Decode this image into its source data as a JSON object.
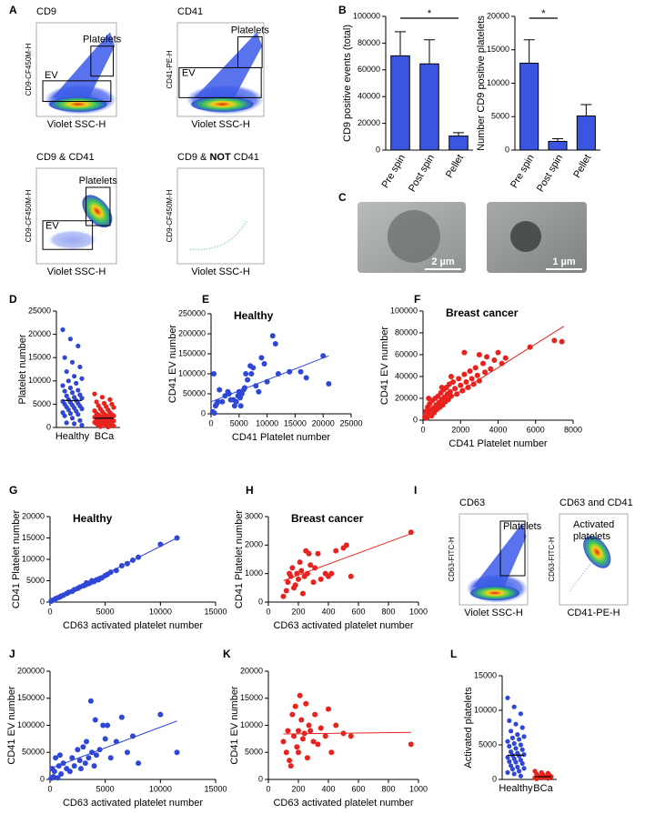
{
  "panel_labels": [
    "A",
    "B",
    "C",
    "D",
    "E",
    "F",
    "G",
    "H",
    "I",
    "J",
    "K",
    "L"
  ],
  "flow_cytometry": {
    "panel_A": [
      {
        "title": "CD9",
        "y_label": "CD9-CF450M-H",
        "x_label": "Violet SSC-H",
        "gates": [
          "EV",
          "Platelets"
        ]
      },
      {
        "title": "CD41",
        "y_label": "CD41-PE-H",
        "x_label": "Violet SSC-H",
        "gates": [
          "EV",
          "Platelets"
        ]
      },
      {
        "title": "CD9 & CD41",
        "y_label": "CD9-CF450M-H",
        "x_label": "Violet SSC-H",
        "gates": [
          "EV",
          "Platelets"
        ]
      },
      {
        "title_parts": [
          "CD9 & ",
          "NOT",
          " CD41"
        ],
        "y_label": "CD9-CF450M-H",
        "x_label": "Violet SSC-H"
      }
    ],
    "panel_I": [
      {
        "title": "CD63",
        "y_label": "CD63-FITC-H",
        "x_label": "Violet SSC-H",
        "gates": [
          "Platelets"
        ]
      },
      {
        "title": "CD63 and CD41",
        "y_label": "CD63-FITC-H",
        "x_label": "CD41-PE-H",
        "annotation": [
          "Activated",
          "platelets"
        ]
      }
    ]
  },
  "micrographs": {
    "scale_bars": [
      "2 µm",
      "1 µm"
    ]
  },
  "chart_data": [
    {
      "type": "bar",
      "ylabel": "CD9 positive events (total)",
      "categories": [
        "Pre spin",
        "Post spin",
        "Pellet"
      ],
      "values": [
        70500,
        64500,
        10500
      ],
      "errors": [
        18000,
        18000,
        2500
      ],
      "color": "#3a55e0",
      "ylim": [
        0,
        100000
      ],
      "yticks": [
        0,
        20000,
        40000,
        60000,
        80000,
        100000
      ],
      "significance": {
        "label": "*",
        "categories": [
          "Pre spin",
          "Pellet"
        ]
      }
    },
    {
      "type": "bar",
      "ylabel": "Number CD9 positive platelets",
      "categories": [
        "Pre spin",
        "Post spin",
        "Pellet"
      ],
      "values": [
        13000,
        1300,
        5100
      ],
      "errors": [
        3500,
        400,
        1700
      ],
      "color": "#3a55e0",
      "ylim": [
        0,
        20000
      ],
      "yticks": [
        0,
        5000,
        10000,
        15000,
        20000
      ],
      "significance": {
        "label": "*",
        "categories": [
          "Pre spin",
          "Post spin"
        ]
      }
    },
    {
      "type": "strip",
      "ylabel": "Platelet number",
      "categories": [
        "Healthy",
        "BCa"
      ],
      "series": [
        {
          "color": "#2f47d6",
          "values": [
            21000,
            19000,
            17500,
            15000,
            14000,
            13000,
            12000,
            11000,
            10500,
            10000,
            9500,
            9000,
            8500,
            8000,
            7800,
            7500,
            7000,
            6800,
            6500,
            6300,
            6000,
            5800,
            5600,
            5400,
            5200,
            5000,
            4800,
            4600,
            4400,
            4200,
            4000,
            3800,
            3500,
            3200,
            3000,
            2800,
            2500,
            2000,
            1500,
            1000,
            800,
            500
          ]
        },
        {
          "color": "#e8231e",
          "values": [
            7200,
            6500,
            6000,
            5500,
            5200,
            5000,
            4700,
            4500,
            4300,
            4000,
            3800,
            3600,
            3400,
            3200,
            3000,
            2900,
            2800,
            2700,
            2600,
            2500,
            2400,
            2300,
            2200,
            2100,
            2000,
            1900,
            1800,
            1700,
            1600,
            1500,
            1400,
            1300,
            1200,
            1100,
            1000,
            900,
            800,
            700,
            600,
            500,
            400,
            300,
            200,
            100
          ]
        }
      ],
      "means": [
        5800,
        2000
      ],
      "ylim": [
        0,
        25000
      ],
      "yticks": [
        0,
        5000,
        10000,
        15000,
        20000,
        25000
      ]
    },
    {
      "type": "scatter",
      "title": "Healthy",
      "xlabel": "CD41 Platelet number",
      "ylabel": "CD41 EV number",
      "color": "#2f47d6",
      "x": [
        300,
        500,
        800,
        1000,
        1500,
        2000,
        2500,
        3000,
        3200,
        3500,
        4000,
        4200,
        4500,
        4800,
        5000,
        5200,
        5500,
        5800,
        6000,
        6200,
        6500,
        7000,
        7200,
        7500,
        8000,
        8500,
        9000,
        9500,
        10000,
        11000,
        11500,
        12000,
        14000,
        16000,
        17000,
        20000,
        21000,
        600,
        1200,
        5300
      ],
      "values": [
        5000,
        100000,
        20000,
        25000,
        60000,
        30000,
        45000,
        55000,
        50000,
        35000,
        35000,
        20000,
        30000,
        45000,
        55000,
        40000,
        50000,
        60000,
        65000,
        100000,
        85000,
        120000,
        100000,
        115000,
        70000,
        55000,
        140000,
        125000,
        80000,
        195000,
        175000,
        100000,
        105000,
        105000,
        90000,
        145000,
        75000,
        2000,
        30000,
        20000
      ],
      "fit_x": [
        0,
        21000
      ],
      "fit_y": [
        30000,
        145000
      ],
      "xlim": [
        0,
        25000
      ],
      "xticks": [
        0,
        5000,
        10000,
        15000,
        20000,
        25000
      ],
      "ylim": [
        0,
        250000
      ],
      "yticks": [
        0,
        50000,
        100000,
        150000,
        200000,
        250000
      ]
    },
    {
      "type": "scatter",
      "title": "Breast cancer",
      "xlabel": "CD41 Platelet number",
      "ylabel": "CD41 EV number",
      "color": "#e8231e",
      "x": [
        100,
        150,
        200,
        250,
        300,
        350,
        400,
        450,
        500,
        550,
        600,
        650,
        700,
        750,
        800,
        850,
        900,
        950,
        1000,
        1050,
        1100,
        1150,
        1200,
        1250,
        1300,
        1350,
        1400,
        1450,
        1500,
        1600,
        1700,
        1800,
        1900,
        2000,
        2100,
        2200,
        2300,
        2400,
        2500,
        2600,
        2700,
        2800,
        2900,
        3000,
        3200,
        3300,
        3400,
        3600,
        3800,
        4000,
        4200,
        4400,
        2200,
        1500,
        1000,
        3000,
        5700,
        7000,
        7400,
        300
      ],
      "values": [
        3000,
        8000,
        2000,
        12000,
        6000,
        15000,
        9000,
        4000,
        18000,
        11000,
        7000,
        20000,
        14000,
        10000,
        22000,
        16000,
        12000,
        25000,
        19000,
        14000,
        28000,
        21000,
        17000,
        30000,
        24000,
        19000,
        33000,
        26000,
        22000,
        35000,
        29000,
        24000,
        38000,
        32000,
        27000,
        42000,
        35000,
        30000,
        45000,
        38000,
        33000,
        48000,
        41000,
        36000,
        52000,
        44000,
        58000,
        47000,
        55000,
        62000,
        52000,
        57000,
        62000,
        40000,
        30000,
        60000,
        67000,
        73000,
        72000,
        20000
      ],
      "fit_x": [
        0,
        7500
      ],
      "fit_y": [
        5000,
        86000
      ],
      "xlim": [
        0,
        8000
      ],
      "xticks": [
        0,
        2000,
        4000,
        6000,
        8000
      ],
      "ylim": [
        0,
        100000
      ],
      "yticks": [
        0,
        20000,
        40000,
        60000,
        80000,
        100000
      ]
    },
    {
      "type": "scatter",
      "title": "Healthy",
      "xlabel": "CD63 activated platelet number",
      "ylabel": "CD41 Platelet number",
      "color": "#2f47d6",
      "x": [
        100,
        200,
        400,
        500,
        700,
        900,
        1000,
        1200,
        1500,
        1700,
        2000,
        2200,
        2500,
        2700,
        3000,
        3200,
        3500,
        3700,
        4000,
        4200,
        4500,
        4700,
        5000,
        5200,
        5500,
        6000,
        6500,
        7000,
        7500,
        8000,
        10000,
        11500,
        3300,
        3800,
        4400
      ],
      "values": [
        200,
        400,
        500,
        800,
        1000,
        1200,
        1400,
        1600,
        2000,
        2300,
        2500,
        2900,
        3200,
        3500,
        3800,
        4000,
        4300,
        4600,
        4800,
        5200,
        5500,
        5700,
        6200,
        6500,
        7000,
        7400,
        8500,
        9000,
        9800,
        10500,
        13500,
        15000,
        4500,
        5000,
        5200
      ],
      "fit_x": [
        0,
        11500
      ],
      "fit_y": [
        0,
        15000
      ],
      "xlim": [
        0,
        15000
      ],
      "xticks": [
        0,
        5000,
        10000,
        15000
      ],
      "ylim": [
        0,
        20000
      ],
      "yticks": [
        0,
        5000,
        10000,
        15000,
        20000
      ]
    },
    {
      "type": "scatter",
      "title": "Breast cancer",
      "xlabel": "CD63 activated platelet number",
      "ylabel": "CD41 Platelet number",
      "color": "#e8231e",
      "x": [
        100,
        120,
        130,
        150,
        160,
        170,
        180,
        190,
        200,
        210,
        220,
        230,
        240,
        250,
        260,
        270,
        280,
        300,
        310,
        330,
        350,
        380,
        400,
        420,
        450,
        500,
        520,
        550,
        950,
        140
      ],
      "values": [
        200,
        400,
        700,
        900,
        1200,
        500,
        600,
        1000,
        800,
        1400,
        1100,
        300,
        900,
        1800,
        1000,
        1700,
        1300,
        700,
        1200,
        1700,
        800,
        1000,
        900,
        1000,
        1800,
        1900,
        2000,
        900,
        2450,
        1000
      ],
      "fit_x": [
        100,
        950
      ],
      "fit_y": [
        750,
        2400
      ],
      "xlim": [
        0,
        1000
      ],
      "xticks": [
        0,
        200,
        400,
        600,
        800,
        1000
      ],
      "ylim": [
        0,
        3000
      ],
      "yticks": [
        0,
        1000,
        2000,
        3000
      ]
    },
    {
      "type": "scatter",
      "xlabel": "CD63 activated platelet number",
      "ylabel": "CD41 EV number",
      "color": "#2f47d6",
      "x": [
        100,
        200,
        300,
        500,
        700,
        800,
        1000,
        1200,
        1500,
        1800,
        2000,
        2200,
        2500,
        2700,
        3000,
        3200,
        3500,
        3700,
        3800,
        4000,
        4200,
        4500,
        4800,
        5000,
        5200,
        5500,
        6000,
        6500,
        7000,
        7500,
        8000,
        10000,
        11500,
        400,
        2800,
        3300,
        4100,
        900
      ],
      "values": [
        2000,
        20000,
        5000,
        40000,
        3000,
        25000,
        10000,
        30000,
        20000,
        15000,
        40000,
        25000,
        55000,
        35000,
        60000,
        30000,
        40000,
        145000,
        50000,
        25000,
        45000,
        55000,
        100000,
        75000,
        100000,
        40000,
        70000,
        115000,
        50000,
        80000,
        30000,
        120000,
        50000,
        15000,
        20000,
        70000,
        110000,
        45000
      ],
      "fit_x": [
        0,
        11500
      ],
      "fit_y": [
        20000,
        108000
      ],
      "xlim": [
        0,
        15000
      ],
      "xticks": [
        0,
        5000,
        10000,
        15000
      ],
      "ylim": [
        0,
        200000
      ],
      "yticks": [
        0,
        50000,
        100000,
        150000,
        200000
      ]
    },
    {
      "type": "scatter",
      "xlabel": "CD63 activated platelet number",
      "ylabel": "CD41 EV number",
      "color": "#e8231e",
      "x": [
        100,
        120,
        130,
        150,
        160,
        170,
        180,
        190,
        200,
        210,
        220,
        230,
        240,
        250,
        260,
        270,
        280,
        300,
        310,
        330,
        350,
        380,
        400,
        420,
        450,
        500,
        550,
        950,
        140,
        200
      ],
      "values": [
        7000,
        5000,
        9000,
        2500,
        12000,
        8000,
        13500,
        6000,
        9000,
        15500,
        11000,
        7500,
        8500,
        14000,
        4000,
        10000,
        9000,
        7000,
        12000,
        6500,
        9500,
        8000,
        13000,
        5000,
        10000,
        8500,
        8000,
        6500,
        3500,
        5000
      ],
      "fit_x": [
        100,
        950
      ],
      "fit_y": [
        8400,
        8700
      ],
      "xlim": [
        0,
        1000
      ],
      "xticks": [
        0,
        200,
        400,
        600,
        800,
        1000
      ],
      "ylim": [
        0,
        20000
      ],
      "yticks": [
        0,
        5000,
        10000,
        15000,
        20000
      ]
    },
    {
      "type": "strip",
      "ylabel": "Activated platelets",
      "categories": [
        "Healthy",
        "BCa"
      ],
      "series": [
        {
          "color": "#2f47d6",
          "values": [
            11800,
            10500,
            9500,
            8500,
            8000,
            7500,
            7000,
            6500,
            6200,
            6000,
            5800,
            5500,
            5200,
            5000,
            4800,
            4500,
            4300,
            4000,
            3800,
            3600,
            3500,
            3400,
            3200,
            3000,
            2800,
            2600,
            2500,
            2300,
            2000,
            1800,
            1600,
            1500,
            1200,
            1000,
            800,
            500
          ]
        },
        {
          "color": "#e8231e",
          "values": [
            1200,
            1000,
            900,
            800,
            700,
            600,
            500,
            450,
            400,
            350,
            300,
            250,
            200,
            150,
            100
          ]
        }
      ],
      "means": [
        3500,
        400
      ],
      "ylim": [
        0,
        15000
      ],
      "yticks": [
        0,
        5000,
        10000,
        15000
      ]
    }
  ]
}
